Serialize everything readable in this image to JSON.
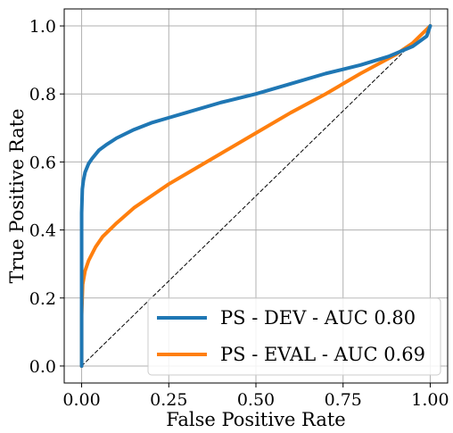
{
  "chart_data": {
    "type": "line",
    "title": "",
    "xlabel": "False Positive Rate",
    "ylabel": "True Positive Rate",
    "xlim": [
      -0.05,
      1.05
    ],
    "ylim": [
      -0.05,
      1.05
    ],
    "xticks": [
      0.0,
      0.25,
      0.5,
      0.75,
      1.0
    ],
    "xtick_labels": [
      "0.00",
      "0.25",
      "0.50",
      "0.75",
      "1.00"
    ],
    "yticks": [
      0.0,
      0.2,
      0.4,
      0.6,
      0.8,
      1.0
    ],
    "ytick_labels": [
      "0.0",
      "0.2",
      "0.4",
      "0.6",
      "0.8",
      "1.0"
    ],
    "grid": true,
    "legend_position": "bottom-right",
    "series": [
      {
        "name": "PS - DEV - AUC 0.80",
        "color": "#1f77b4",
        "x": [
          0,
          0,
          0.002,
          0.005,
          0.01,
          0.02,
          0.03,
          0.05,
          0.07,
          0.1,
          0.15,
          0.2,
          0.25,
          0.3,
          0.4,
          0.5,
          0.6,
          0.7,
          0.8,
          0.88,
          0.95,
          0.99,
          1.0
        ],
        "y": [
          0,
          0.45,
          0.52,
          0.545,
          0.57,
          0.595,
          0.61,
          0.635,
          0.65,
          0.67,
          0.695,
          0.715,
          0.73,
          0.745,
          0.775,
          0.8,
          0.83,
          0.86,
          0.885,
          0.91,
          0.94,
          0.97,
          1.0
        ]
      },
      {
        "name": "PS - EVAL - AUC 0.69",
        "color": "#ff7f0e",
        "x": [
          0,
          0,
          0.003,
          0.01,
          0.02,
          0.04,
          0.06,
          0.08,
          0.1,
          0.15,
          0.2,
          0.25,
          0.3,
          0.4,
          0.5,
          0.6,
          0.7,
          0.8,
          0.9,
          0.95,
          1.0
        ],
        "y": [
          0,
          0.15,
          0.24,
          0.28,
          0.31,
          0.35,
          0.38,
          0.4,
          0.42,
          0.465,
          0.5,
          0.535,
          0.565,
          0.625,
          0.685,
          0.745,
          0.8,
          0.86,
          0.915,
          0.95,
          1.0
        ]
      },
      {
        "name": "",
        "color": "#000000",
        "style": "dashed",
        "x": [
          0,
          1
        ],
        "y": [
          0,
          1
        ]
      }
    ]
  }
}
